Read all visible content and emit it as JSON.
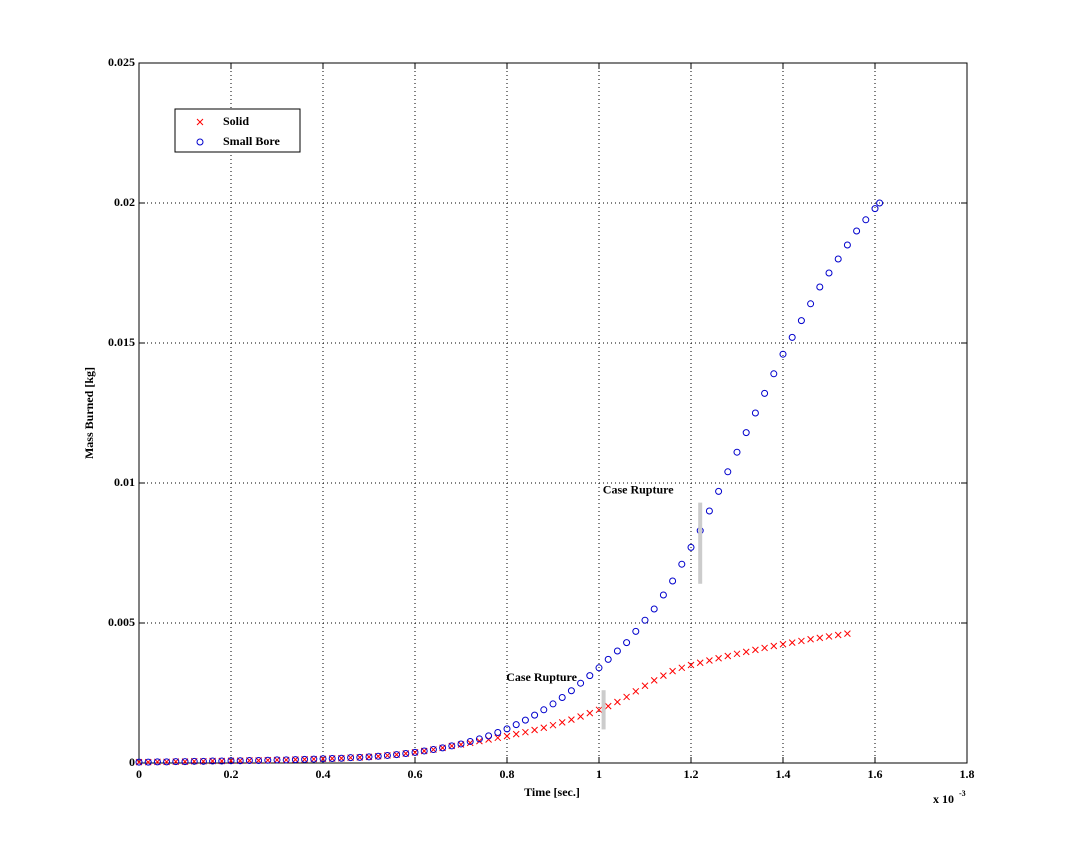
{
  "chart_data": {
    "type": "scatter",
    "x_label": "Time [sec.]",
    "y_label": "Mass Burned [kg]",
    "x_scale_base": "x 10",
    "x_scale_exponent": "-3",
    "xlim": [
      0,
      1.8
    ],
    "ylim": [
      0,
      0.025
    ],
    "xticks": [
      0,
      0.2,
      0.4,
      0.6,
      0.8,
      1,
      1.2,
      1.4,
      1.6,
      1.8
    ],
    "yticks": [
      0,
      0.005,
      0.01,
      0.015,
      0.02,
      0.025
    ],
    "grid": true,
    "legend": "upper-left",
    "series": [
      {
        "name": "Solid",
        "color": "#ff0000",
        "marker": "x",
        "x": [
          0,
          0.02,
          0.04,
          0.06,
          0.08,
          0.1,
          0.12,
          0.14,
          0.16,
          0.18,
          0.2,
          0.22,
          0.24,
          0.26,
          0.28,
          0.3,
          0.32,
          0.34,
          0.36,
          0.38,
          0.4,
          0.42,
          0.44,
          0.46,
          0.48,
          0.5,
          0.52,
          0.54,
          0.56,
          0.58,
          0.6,
          0.62,
          0.64,
          0.66,
          0.68,
          0.7,
          0.72,
          0.74,
          0.76,
          0.78,
          0.8,
          0.82,
          0.84,
          0.86,
          0.88,
          0.9,
          0.92,
          0.94,
          0.96,
          0.98,
          1,
          1.02,
          1.04,
          1.06,
          1.08,
          1.1,
          1.12,
          1.14,
          1.16,
          1.18,
          1.2,
          1.22,
          1.24,
          1.26,
          1.28,
          1.3,
          1.32,
          1.34,
          1.36,
          1.38,
          1.4,
          1.42,
          1.44,
          1.46,
          1.48,
          1.5,
          1.52,
          1.54
        ],
        "values": [
          3e-05,
          3e-05,
          4e-05,
          4e-05,
          5e-05,
          5e-05,
          6e-05,
          6e-05,
          7e-05,
          7e-05,
          8e-05,
          8e-05,
          9e-05,
          9e-05,
          0.0001,
          0.00011,
          0.00011,
          0.00012,
          0.00013,
          0.00014,
          0.00015,
          0.00016,
          0.00017,
          0.00019,
          0.0002,
          0.00022,
          0.00024,
          0.00027,
          0.0003,
          0.00034,
          0.00038,
          0.00043,
          0.00048,
          0.00054,
          0.00061,
          0.00066,
          0.00072,
          0.00078,
          0.00084,
          0.0009,
          0.00096,
          0.00103,
          0.0011,
          0.00118,
          0.00126,
          0.00135,
          0.00145,
          0.00155,
          0.00166,
          0.00178,
          0.0019,
          0.00203,
          0.00218,
          0.00236,
          0.00256,
          0.00276,
          0.00295,
          0.00312,
          0.00328,
          0.0034,
          0.0035,
          0.00358,
          0.00366,
          0.00374,
          0.00382,
          0.0039,
          0.00397,
          0.00404,
          0.00411,
          0.00418,
          0.00424,
          0.0043,
          0.00436,
          0.00442,
          0.00447,
          0.00452,
          0.00457,
          0.00462
        ]
      },
      {
        "name": "Small Bore",
        "color": "#0000cc",
        "marker": "o",
        "x": [
          0,
          0.02,
          0.04,
          0.06,
          0.08,
          0.1,
          0.12,
          0.14,
          0.16,
          0.18,
          0.2,
          0.22,
          0.24,
          0.26,
          0.28,
          0.3,
          0.32,
          0.34,
          0.36,
          0.38,
          0.4,
          0.42,
          0.44,
          0.46,
          0.48,
          0.5,
          0.52,
          0.54,
          0.56,
          0.58,
          0.6,
          0.62,
          0.64,
          0.66,
          0.68,
          0.7,
          0.72,
          0.74,
          0.76,
          0.78,
          0.8,
          0.82,
          0.84,
          0.86,
          0.88,
          0.9,
          0.92,
          0.94,
          0.96,
          0.98,
          1,
          1.02,
          1.04,
          1.06,
          1.08,
          1.1,
          1.12,
          1.14,
          1.16,
          1.18,
          1.2,
          1.22,
          1.24,
          1.26,
          1.28,
          1.3,
          1.32,
          1.34,
          1.36,
          1.38,
          1.4,
          1.42,
          1.44,
          1.46,
          1.48,
          1.5,
          1.52,
          1.54,
          1.56,
          1.58,
          1.6,
          1.61
        ],
        "values": [
          3e-05,
          3e-05,
          4e-05,
          4e-05,
          5e-05,
          5e-05,
          6e-05,
          6e-05,
          7e-05,
          7e-05,
          8e-05,
          8e-05,
          9e-05,
          9e-05,
          0.0001,
          0.00011,
          0.00011,
          0.00012,
          0.00013,
          0.00014,
          0.00015,
          0.00016,
          0.00017,
          0.00019,
          0.0002,
          0.00022,
          0.00024,
          0.00027,
          0.0003,
          0.00034,
          0.00038,
          0.00043,
          0.00048,
          0.00054,
          0.00061,
          0.00068,
          0.00077,
          0.00086,
          0.00097,
          0.00109,
          0.00122,
          0.00137,
          0.00153,
          0.00171,
          0.0019,
          0.00211,
          0.00234,
          0.00258,
          0.00285,
          0.00312,
          0.0034,
          0.0037,
          0.004,
          0.0043,
          0.0047,
          0.0051,
          0.0055,
          0.006,
          0.0065,
          0.0071,
          0.0077,
          0.0083,
          0.009,
          0.0097,
          0.0104,
          0.0111,
          0.0118,
          0.0125,
          0.0132,
          0.0139,
          0.0146,
          0.0152,
          0.0158,
          0.0164,
          0.017,
          0.0175,
          0.018,
          0.0185,
          0.019,
          0.0194,
          0.0198,
          0.02
        ]
      }
    ],
    "annotations": [
      {
        "text": "Case Rupture",
        "x": 1.22,
        "y": [
          0.0064,
          0.0093
        ],
        "color": "#cccccc"
      },
      {
        "text": "Case Rupture",
        "x": 1.01,
        "y": [
          0.0012,
          0.0026
        ],
        "color": "#cccccc"
      }
    ]
  }
}
